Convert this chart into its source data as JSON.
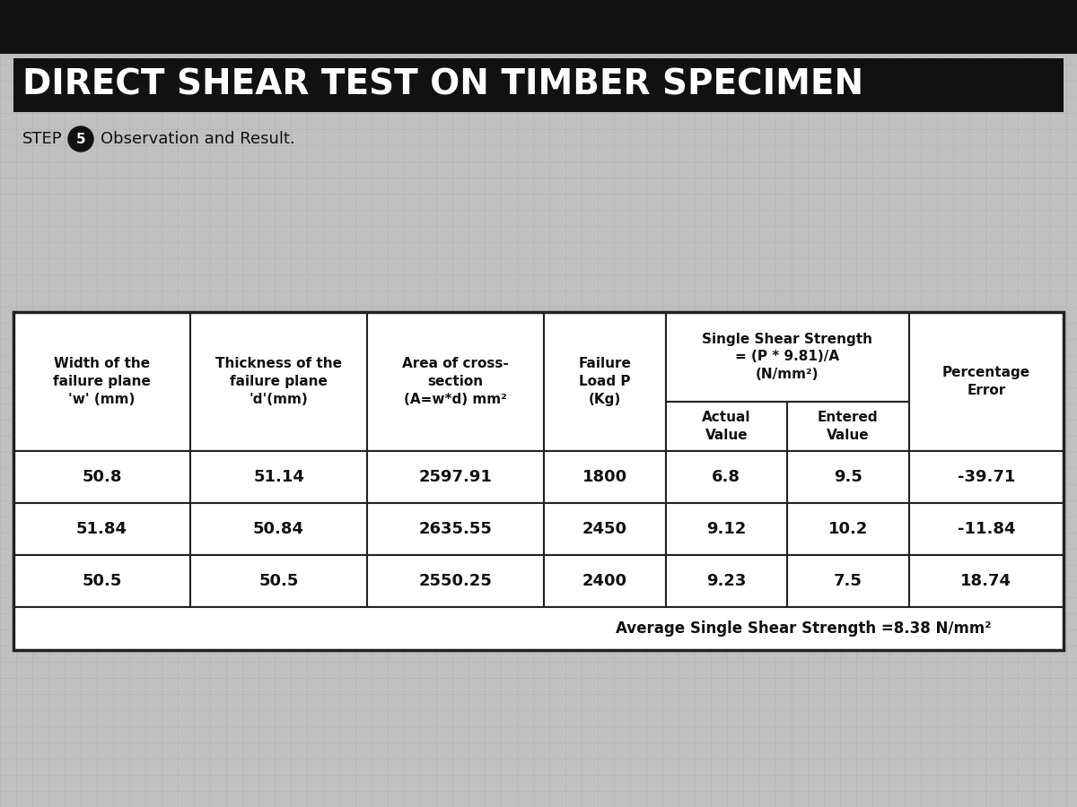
{
  "main_title": "DIRECT SHEAR TEST ON TIMBER SPECIMEN",
  "step_label": "STEP",
  "step_number": "5",
  "step_text": "Observation and Result.",
  "bg_color": "#b8b8b8",
  "title_bg_color": "#111111",
  "title_text_color": "#ffffff",
  "top_bar_color": "#1a1a1a",
  "data_rows": [
    [
      "50.8",
      "51.14",
      "2597.91",
      "1800",
      "6.8",
      "9.5",
      "-39.71"
    ],
    [
      "51.84",
      "50.84",
      "2635.55",
      "2450",
      "9.12",
      "10.2",
      "-11.84"
    ],
    [
      "50.5",
      "50.5",
      "2550.25",
      "2400",
      "9.23",
      "7.5",
      "18.74"
    ]
  ],
  "avg_text": "Average Single Shear Strength =8.38 N/mm²",
  "table_header_bg": "#ffffff",
  "table_data_bg": "#ffffff",
  "table_border_color": "#222222",
  "table_avg_bg": "#ffffff"
}
